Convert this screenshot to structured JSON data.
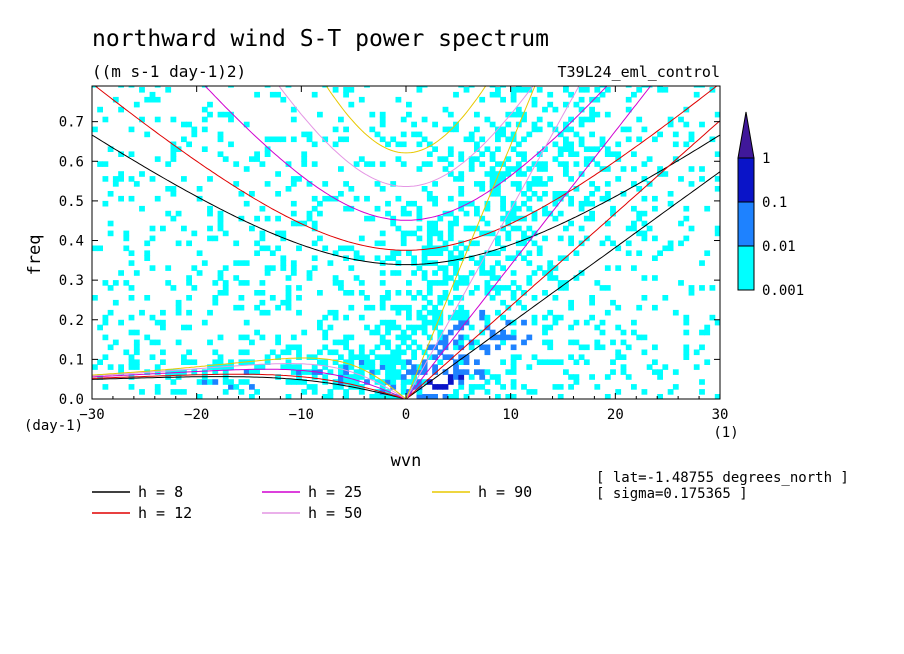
{
  "chart_data": {
    "type": "heatmap",
    "title": "northward wind S-T power spectrum",
    "units": "((m s-1 day-1)2)",
    "run_label": "T39L24_eml_control",
    "xlabel": "wvn",
    "ylabel": "freq",
    "x_unit": "(1)",
    "y_unit": "(day-1)",
    "xlim": [
      -30,
      30
    ],
    "ylim": [
      0,
      0.79
    ],
    "x_ticks": [
      -30,
      -20,
      -10,
      0,
      10,
      20,
      30
    ],
    "y_ticks": [
      0.0,
      0.1,
      0.2,
      0.3,
      0.4,
      0.5,
      0.6,
      0.7
    ],
    "colorbar": {
      "levels": [
        "0.001",
        "0.01",
        "0.1",
        "1"
      ],
      "colors": [
        "#00ffff",
        "#1e82ff",
        "#0a14c8",
        "#40189a"
      ]
    },
    "dispersion_curves": [
      {
        "label": "h =  8",
        "h": 8,
        "color": "#000000"
      },
      {
        "label": "h = 12",
        "h": 12,
        "color": "#e00000"
      },
      {
        "label": "h = 25",
        "h": 25,
        "color": "#d000d0"
      },
      {
        "label": "h = 50",
        "h": 50,
        "color": "#e496e4"
      },
      {
        "label": "h = 90",
        "h": 90,
        "color": "#e8c800"
      }
    ],
    "annotations": [
      "[ lat=-1.48755 degrees_north ]",
      "[ sigma=0.175365 ]"
    ]
  }
}
